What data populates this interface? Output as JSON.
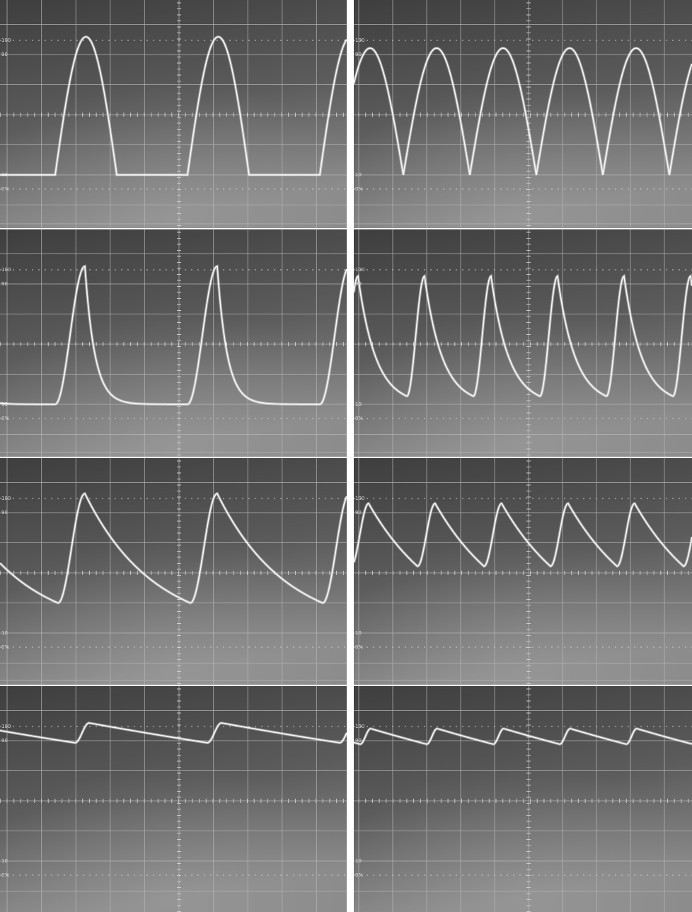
{
  "graticule_labels": {
    "top": "100",
    "upper": "90",
    "lower": "10",
    "bottom": "0%"
  }
}
